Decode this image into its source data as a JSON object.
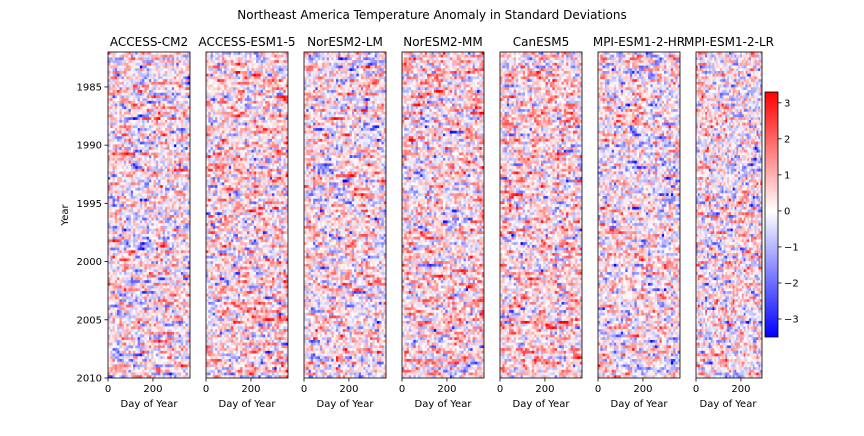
{
  "chart_data": {
    "type": "heatmap",
    "title": "Northeast America Temperature Anomaly in Standard Deviations",
    "xlabel": "Day of Year",
    "ylabel": "Year",
    "x_ticks": [
      0,
      200
    ],
    "xlim": [
      0,
      365
    ],
    "y_ticks": [
      1985,
      1990,
      1995,
      2000,
      2005,
      2010
    ],
    "ylim": [
      1982,
      2010
    ],
    "colorbar": {
      "colormap": "bwr",
      "vmin": -3.5,
      "vmax": 3.3,
      "ticks": [
        3,
        2,
        1,
        0,
        -1,
        -2,
        -3
      ],
      "tick_labels": [
        "3",
        "2",
        "1",
        "0",
        "−1",
        "−2",
        "−3"
      ]
    },
    "colors": {
      "negative": "#0000ff",
      "zero": "#ffffff",
      "positive": "#ff0000"
    },
    "panels": [
      {
        "name": "ACCESS-CM2",
        "mean_anomaly": 0.25
      },
      {
        "name": "ACCESS-ESM1-5",
        "mean_anomaly": 0.55
      },
      {
        "name": "NorESM2-LM",
        "mean_anomaly": 0.3
      },
      {
        "name": "NorESM2-MM",
        "mean_anomaly": 0.6
      },
      {
        "name": "CanESM5",
        "mean_anomaly": 0.7
      },
      {
        "name": "MPI-ESM1-2-HR",
        "mean_anomaly": 0.1
      },
      {
        "name": "MPI-ESM1-2-LR",
        "mean_anomaly": 0.2
      }
    ]
  }
}
